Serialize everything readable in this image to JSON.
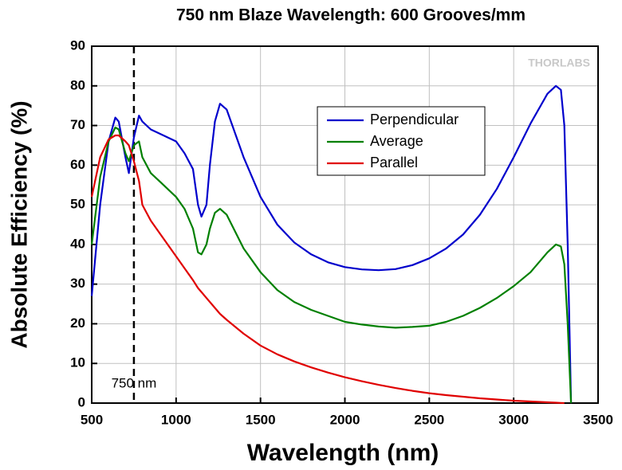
{
  "chart_data": {
    "type": "line",
    "title": "750 nm Blaze Wavelength: 600 Grooves/mm",
    "x_label": "Wavelength (nm)",
    "y_label": "Absolute Efficiency (%)",
    "watermark": "THORLABS",
    "vline": {
      "x": 750,
      "label": "750 nm"
    },
    "x": [
      500,
      550,
      600,
      640,
      660,
      700,
      720,
      750,
      780,
      800,
      850,
      900,
      1000,
      1050,
      1100,
      1130,
      1150,
      1180,
      1200,
      1230,
      1260,
      1300,
      1400,
      1500,
      1600,
      1700,
      1800,
      1900,
      2000,
      2100,
      2200,
      2300,
      2400,
      2500,
      2600,
      2700,
      2800,
      2900,
      3000,
      3100,
      3200,
      3250,
      3280,
      3300,
      3320,
      3340
    ],
    "series": [
      {
        "name": "Perpendicular",
        "color": "#0000cc",
        "values": [
          27,
          50,
          66,
          72,
          71,
          62,
          58,
          67,
          72.5,
          71,
          69,
          68,
          66,
          63,
          59,
          50,
          47,
          50,
          60,
          71,
          75.5,
          74,
          62,
          52,
          45,
          40.5,
          37.5,
          35.5,
          34.3,
          33.7,
          33.5,
          33.8,
          34.8,
          36.5,
          39,
          42.5,
          47.5,
          54,
          62,
          70.5,
          78,
          80,
          79,
          70,
          40,
          0
        ]
      },
      {
        "name": "Average",
        "color": "#008000",
        "values": [
          40,
          57,
          66,
          69.5,
          69,
          63,
          61,
          65,
          66,
          62,
          58,
          56,
          52,
          49,
          44,
          38,
          37.5,
          40,
          44,
          48,
          49,
          47.5,
          39,
          33,
          28.5,
          25.5,
          23.5,
          22,
          20.5,
          19.8,
          19.3,
          19,
          19.2,
          19.5,
          20.5,
          22,
          24,
          26.5,
          29.5,
          33,
          38,
          40,
          39.5,
          35,
          20,
          0
        ]
      },
      {
        "name": "Parallel",
        "color": "#e00000",
        "values": [
          52,
          62,
          66.5,
          67.5,
          67.5,
          66,
          65,
          61,
          56,
          50,
          46,
          43,
          37,
          34,
          31,
          29,
          28,
          26.5,
          25.5,
          24,
          22.5,
          21,
          17.5,
          14.5,
          12.3,
          10.5,
          9,
          7.7,
          6.5,
          5.5,
          4.6,
          3.8,
          3.1,
          2.5,
          2,
          1.6,
          1.2,
          0.9,
          0.6,
          0.4,
          0.2,
          0.1,
          0.05,
          0,
          null,
          null
        ]
      }
    ],
    "xlim": [
      500,
      3500
    ],
    "xticks": [
      500,
      1000,
      1500,
      2000,
      2500,
      3000,
      3500
    ],
    "ylim": [
      0,
      90
    ],
    "yticks": [
      0,
      10,
      20,
      30,
      40,
      50,
      60,
      70,
      80,
      90
    ],
    "grid": true,
    "legend": "upper center"
  }
}
